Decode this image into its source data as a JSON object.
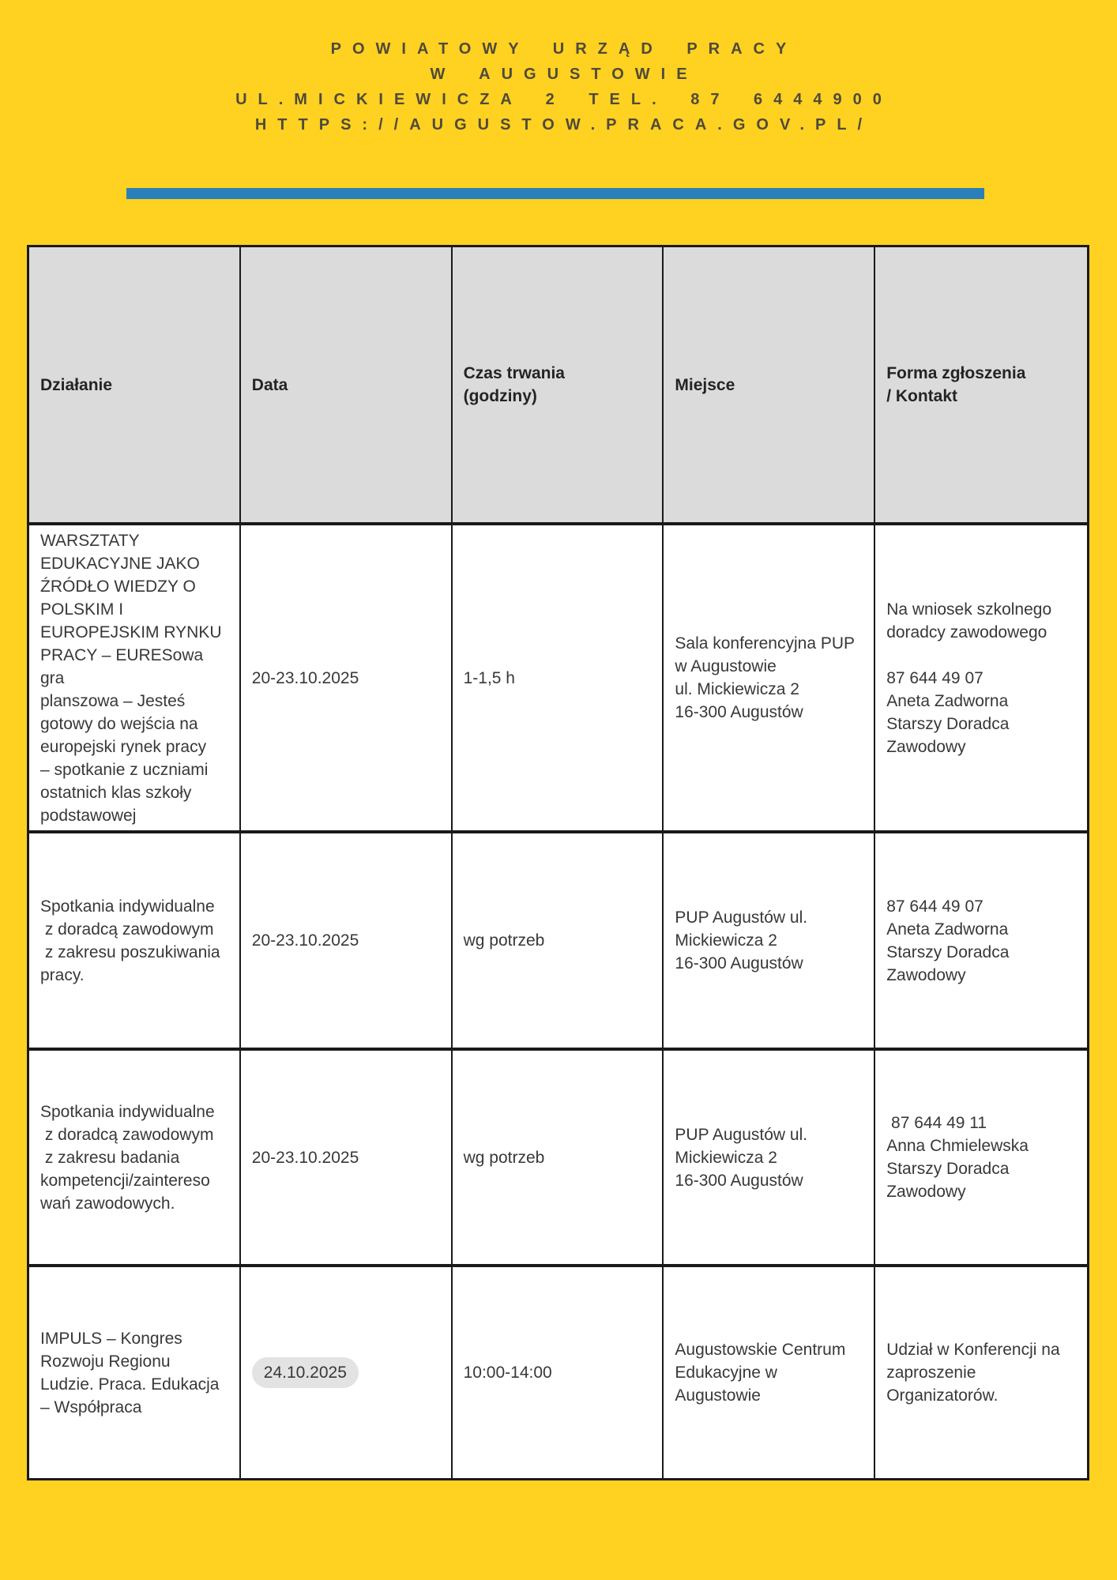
{
  "page": {
    "background_color": "#ffd121",
    "divider_color": "#2980b9"
  },
  "header": {
    "line1": "POWIATOWY URZĄD PRACY",
    "line2": "W AUGUSTOWIE",
    "line3": "UL.MICKIEWICZA 2 TEL. 87 6444900",
    "line4": "HTTPS://AUGUSTOW.PRACA.GOV.PL/"
  },
  "table": {
    "columns": {
      "dzialanie": "Działanie",
      "data": "Data",
      "czas": "Czas trwania\n(godziny)",
      "miejsce": "Miejsce",
      "forma": "Forma zgłoszenia\n/ Kontakt"
    },
    "rows": [
      {
        "dzialanie": "WARSZTATY\nEDUKACYJNE JAKO\nŹRÓDŁO WIEDZY O\nPOLSKIM I\nEUROPEJSKIM RYNKU\nPRACY – EURESowa gra\nplanszowa – Jesteś\ngotowy do wejścia na\neuropejski rynek pracy\n– spotkanie z uczniami\nostatnich klas szkoły\npodstawowej",
        "data": "20-23.10.2025",
        "data_highlighted": false,
        "czas": "1-1,5 h",
        "miejsce": "Sala konferencyjna PUP\nw Augustowie\nul. Mickiewicza 2\n16-300 Augustów",
        "forma": "Na wniosek szkolnego\ndoradcy zawodowego\n\n87 644 49 07\nAneta Zadworna\nStarszy Doradca\nZawodowy"
      },
      {
        "dzialanie": "Spotkania indywidualne\n z doradcą zawodowym\n z zakresu poszukiwania\npracy.",
        "data": "20-23.10.2025",
        "data_highlighted": false,
        "czas": "wg potrzeb",
        "miejsce": "PUP Augustów ul.\nMickiewicza 2\n16-300 Augustów",
        "forma": "87 644 49 07\nAneta Zadworna\nStarszy Doradca\nZawodowy"
      },
      {
        "dzialanie": "Spotkania indywidualne\n z doradcą zawodowym\n z zakresu badania\nkompetencji/zaintereso\nwań zawodowych.",
        "data": "20-23.10.2025",
        "data_highlighted": false,
        "czas": "wg potrzeb",
        "miejsce": "PUP Augustów ul.\nMickiewicza 2\n16-300 Augustów",
        "forma": " 87 644 49 11\nAnna Chmielewska\nStarszy Doradca\nZawodowy"
      },
      {
        "dzialanie": "IMPULS – Kongres\nRozwoju Regionu\nLudzie. Praca. Edukacja\n– Współpraca",
        "data": "24.10.2025",
        "data_highlighted": true,
        "czas": "10:00-14:00",
        "miejsce": "Augustowskie Centrum\nEdukacyjne w\nAugustowie",
        "forma": "Udział w Konferencji na\nzaproszenie\nOrganizatorów."
      }
    ]
  }
}
